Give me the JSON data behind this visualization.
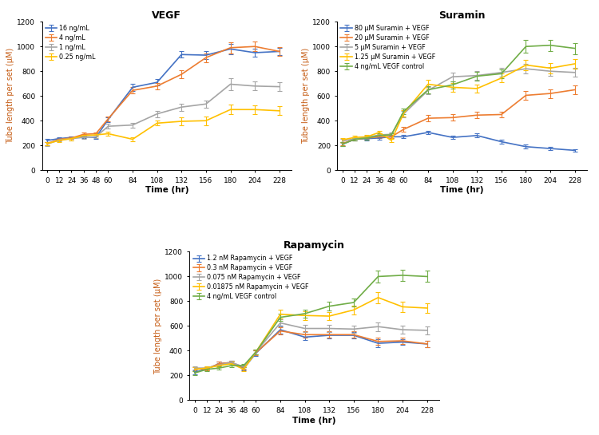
{
  "time": [
    0,
    12,
    24,
    36,
    48,
    60,
    84,
    108,
    132,
    156,
    180,
    204,
    228
  ],
  "vegf": {
    "title": "VEGF",
    "ylabel": "Tube length per set (μM)",
    "xlabel": "Time (hr)",
    "ylim": [
      0,
      1200
    ],
    "yticks": [
      0,
      200,
      400,
      600,
      800,
      1000,
      1200
    ],
    "series": [
      {
        "label": "16 ng/mL",
        "color": "#4472C4",
        "values": [
          240,
          255,
          265,
          270,
          265,
          410,
          670,
          710,
          935,
          930,
          980,
          950,
          960
        ],
        "errors": [
          15,
          10,
          10,
          10,
          10,
          20,
          30,
          25,
          25,
          30,
          40,
          30,
          30
        ]
      },
      {
        "label": "4 ng/mL",
        "color": "#ED7D31",
        "values": [
          215,
          250,
          260,
          290,
          295,
          415,
          645,
          680,
          775,
          910,
          990,
          1000,
          960
        ],
        "errors": [
          15,
          10,
          10,
          12,
          10,
          20,
          25,
          25,
          30,
          35,
          45,
          40,
          35
        ]
      },
      {
        "label": "1 ng/mL",
        "color": "#A5A5A5",
        "values": [
          210,
          245,
          255,
          265,
          270,
          355,
          365,
          455,
          510,
          535,
          695,
          680,
          675
        ],
        "errors": [
          15,
          12,
          12,
          12,
          12,
          20,
          20,
          25,
          30,
          30,
          50,
          35,
          35
        ]
      },
      {
        "label": "0.25 ng/mL",
        "color": "#FFC000",
        "values": [
          215,
          240,
          255,
          280,
          285,
          295,
          250,
          380,
          395,
          400,
          490,
          490,
          480
        ],
        "errors": [
          15,
          12,
          12,
          12,
          15,
          15,
          15,
          20,
          30,
          35,
          40,
          35,
          35
        ]
      }
    ]
  },
  "suramin": {
    "title": "Suramin",
    "ylabel": "Tube length per set (μM)",
    "xlabel": "Time (hr)",
    "ylim": [
      0,
      1200
    ],
    "yticks": [
      0,
      200,
      400,
      600,
      800,
      1000,
      1200
    ],
    "series": [
      {
        "label": "80 μM Suramin + VEGF",
        "color": "#4472C4",
        "values": [
          210,
          250,
          255,
          260,
          270,
          270,
          305,
          265,
          280,
          230,
          190,
          175,
          160
        ],
        "errors": [
          15,
          12,
          12,
          12,
          12,
          12,
          15,
          15,
          15,
          15,
          15,
          12,
          12
        ]
      },
      {
        "label": "20 μM Suramin + VEGF",
        "color": "#ED7D31",
        "values": [
          215,
          250,
          260,
          270,
          270,
          330,
          420,
          425,
          445,
          450,
          605,
          620,
          650
        ],
        "errors": [
          15,
          12,
          12,
          12,
          12,
          20,
          25,
          25,
          25,
          25,
          35,
          35,
          35
        ]
      },
      {
        "label": "5 μM Suramin + VEGF",
        "color": "#A5A5A5",
        "values": [
          235,
          255,
          265,
          285,
          290,
          455,
          645,
          755,
          765,
          790,
          820,
          800,
          790
        ],
        "errors": [
          15,
          12,
          12,
          15,
          12,
          25,
          30,
          35,
          35,
          35,
          40,
          35,
          35
        ]
      },
      {
        "label": "1.25 μM Suramin + VEGF",
        "color": "#FFC000",
        "values": [
          245,
          265,
          270,
          305,
          240,
          460,
          695,
          670,
          660,
          745,
          850,
          825,
          860
        ],
        "errors": [
          15,
          12,
          12,
          15,
          15,
          25,
          35,
          35,
          35,
          35,
          45,
          40,
          40
        ]
      },
      {
        "label": "4 ng/mL VEGF control",
        "color": "#70AD47",
        "values": [
          210,
          250,
          260,
          280,
          285,
          475,
          650,
          690,
          760,
          780,
          1000,
          1010,
          985
        ],
        "errors": [
          15,
          12,
          12,
          15,
          12,
          25,
          30,
          30,
          35,
          35,
          50,
          45,
          45
        ]
      }
    ]
  },
  "rapamycin": {
    "title": "Rapamycin",
    "ylabel": "Tube length per set (μM)",
    "xlabel": "Time (hr)",
    "ylim": [
      0,
      1200
    ],
    "yticks": [
      0,
      200,
      400,
      600,
      800,
      1000,
      1200
    ],
    "series": [
      {
        "label": "1.2 nM Rapamycin + VEGF",
        "color": "#4472C4",
        "values": [
          225,
          255,
          295,
          305,
          255,
          380,
          570,
          510,
          525,
          525,
          460,
          470,
          455
        ],
        "errors": [
          15,
          12,
          15,
          15,
          15,
          20,
          30,
          25,
          25,
          25,
          30,
          25,
          25
        ]
      },
      {
        "label": "0.3 nM Rapamycin + VEGF",
        "color": "#ED7D31",
        "values": [
          250,
          255,
          295,
          305,
          265,
          385,
          560,
          530,
          530,
          530,
          475,
          480,
          455
        ],
        "errors": [
          15,
          12,
          15,
          15,
          15,
          20,
          30,
          25,
          25,
          25,
          30,
          25,
          25
        ]
      },
      {
        "label": "0.075 nM Rapamycin + VEGF",
        "color": "#A5A5A5",
        "values": [
          260,
          260,
          285,
          305,
          270,
          390,
          625,
          580,
          580,
          575,
          595,
          570,
          565
        ],
        "errors": [
          15,
          12,
          15,
          15,
          15,
          20,
          30,
          30,
          30,
          30,
          35,
          30,
          30
        ]
      },
      {
        "label": "0.01875 nM Rapamycin + VEGF",
        "color": "#FFC000",
        "values": [
          250,
          260,
          280,
          295,
          250,
          390,
          695,
          685,
          680,
          730,
          830,
          755,
          745
        ],
        "errors": [
          15,
          12,
          15,
          15,
          15,
          20,
          35,
          35,
          35,
          35,
          45,
          40,
          40
        ]
      },
      {
        "label": "4 ng/mL VEGF control",
        "color": "#70AD47",
        "values": [
          220,
          250,
          260,
          280,
          280,
          390,
          670,
          700,
          760,
          790,
          1000,
          1010,
          1000
        ],
        "errors": [
          15,
          12,
          12,
          15,
          12,
          20,
          30,
          35,
          35,
          35,
          50,
          45,
          45
        ]
      }
    ]
  }
}
